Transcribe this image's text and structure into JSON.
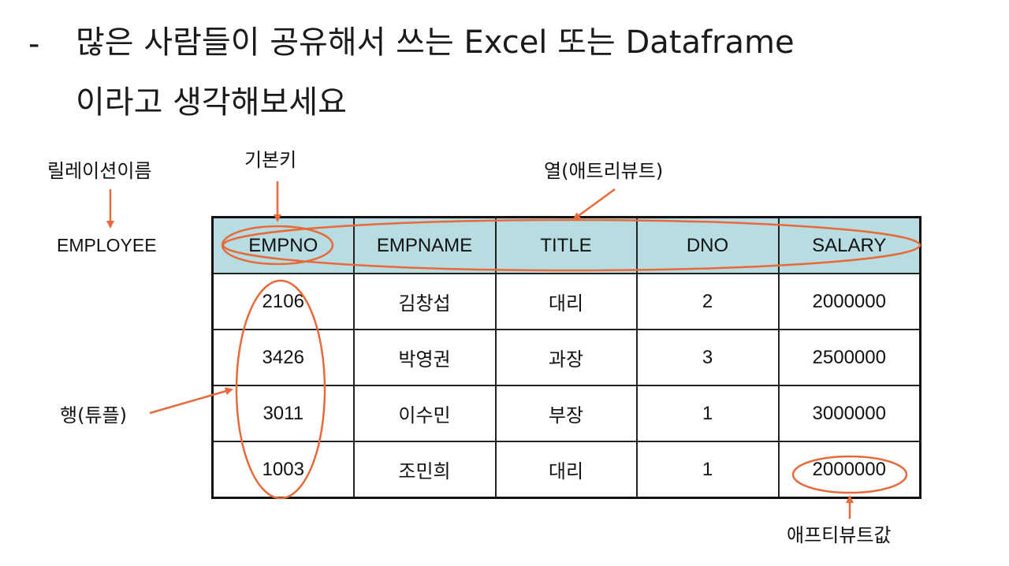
{
  "heading": {
    "dash": "-",
    "line1": "많은 사람들이 공유해서 쓰는 Excel 또는 Dataframe",
    "line2": "이라고 생각해보세요"
  },
  "labels": {
    "relation_name": "릴레이션이름",
    "relation_value": "EMPLOYEE",
    "primary_key": "기본키",
    "column": "열(애트리뷰트)",
    "row": "행(튜플)",
    "attribute_value": "애프티뷰트값"
  },
  "table": {
    "headers": [
      "EMPNO",
      "EMPNAME",
      "TITLE",
      "DNO",
      "SALARY"
    ],
    "rows": [
      [
        "2106",
        "김창섭",
        "대리",
        "2",
        "2000000"
      ],
      [
        "3426",
        "박영권",
        "과장",
        "3",
        "2500000"
      ],
      [
        "3011",
        "이수민",
        "부장",
        "1",
        "3000000"
      ],
      [
        "1003",
        "조민희",
        "대리",
        "1",
        "2000000"
      ]
    ]
  },
  "colors": {
    "header_bg": "#b7dde3",
    "annotation": "#e8693a"
  }
}
